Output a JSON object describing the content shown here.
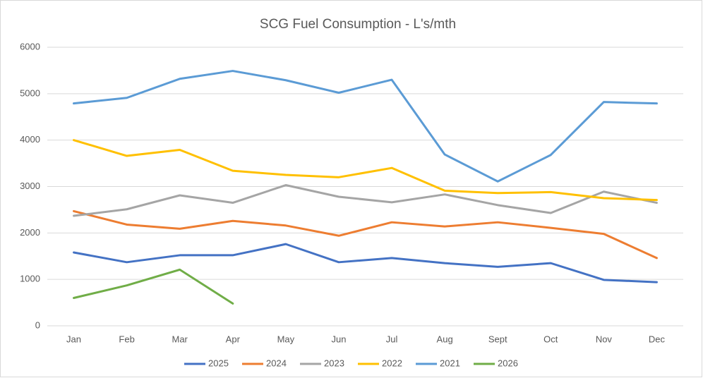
{
  "chart_data": {
    "type": "line",
    "title": "SCG Fuel Consumption - L's/mth",
    "categories": [
      "Jan",
      "Feb",
      "Mar",
      "Apr",
      "May",
      "Jun",
      "Jul",
      "Aug",
      "Sept",
      "Oct",
      "Nov",
      "Dec"
    ],
    "series": [
      {
        "name": "2025",
        "color": "#4472c4",
        "values": [
          1580,
          1370,
          1520,
          1520,
          1760,
          1370,
          1460,
          1350,
          1270,
          1350,
          990,
          940
        ]
      },
      {
        "name": "2024",
        "color": "#ed7d31",
        "values": [
          2470,
          2180,
          2090,
          2260,
          2160,
          1940,
          2230,
          2140,
          2230,
          2110,
          1980,
          1460
        ]
      },
      {
        "name": "2023",
        "color": "#a5a5a5",
        "values": [
          2370,
          2510,
          2810,
          2650,
          3030,
          2780,
          2660,
          2830,
          2600,
          2430,
          2890,
          2650
        ]
      },
      {
        "name": "2022",
        "color": "#ffc000",
        "values": [
          4000,
          3660,
          3790,
          3340,
          3250,
          3200,
          3400,
          2910,
          2860,
          2880,
          2750,
          2710
        ]
      },
      {
        "name": "2021",
        "color": "#5b9bd5",
        "values": [
          4790,
          4910,
          5320,
          5490,
          5290,
          5020,
          5300,
          3690,
          3110,
          3680,
          4820,
          4790
        ]
      },
      {
        "name": "2026",
        "color": "#70ad47",
        "values": [
          600,
          870,
          1210,
          480,
          null,
          null,
          null,
          null,
          null,
          null,
          null,
          null
        ]
      }
    ],
    "ylim": [
      0,
      6000
    ],
    "yticks": [
      0,
      1000,
      2000,
      3000,
      4000,
      5000,
      6000
    ],
    "grid": true,
    "legend": "bottom"
  }
}
